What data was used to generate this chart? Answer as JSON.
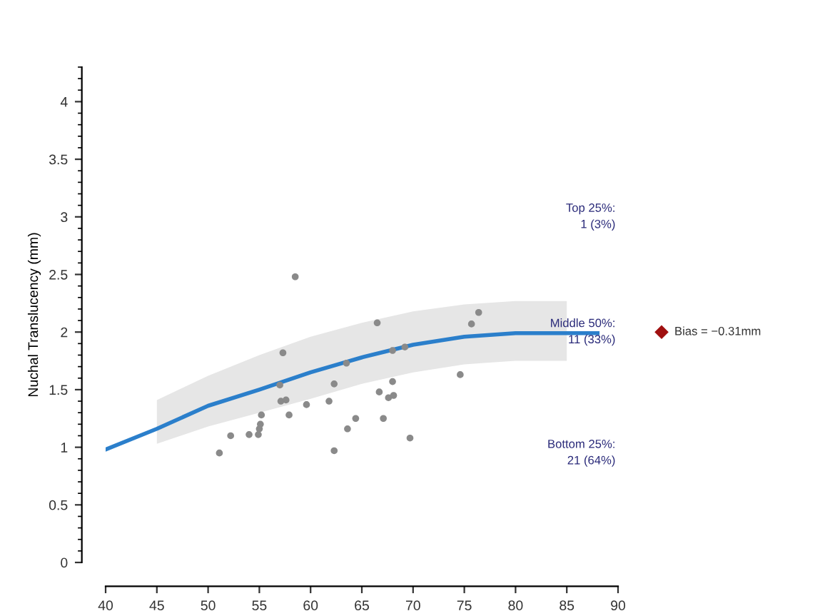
{
  "chart_data": {
    "type": "scatter",
    "ylabel": "Nuchal Translucency (mm)",
    "xlim": [
      40,
      90
    ],
    "xticks": [
      40,
      45,
      50,
      55,
      60,
      65,
      70,
      75,
      80,
      85,
      90
    ],
    "ylim": [
      0,
      4.3
    ],
    "yticks": [
      0,
      0.5,
      1,
      1.5,
      2,
      2.5,
      3,
      3.5,
      4
    ],
    "grid": false,
    "series": [
      {
        "type": "line",
        "color": "#2b7fcb",
        "x": [
          40,
          45,
          50,
          55,
          60,
          65,
          70,
          75,
          80,
          85,
          88
        ],
        "values": [
          0.98,
          1.16,
          1.36,
          1.5,
          1.65,
          1.78,
          1.89,
          1.96,
          1.99,
          1.99,
          1.99
        ],
        "lower": [
          null,
          1.03,
          1.18,
          1.3,
          1.42,
          1.55,
          1.65,
          1.72,
          1.75,
          1.75,
          null
        ],
        "upper": [
          null,
          1.41,
          1.62,
          1.8,
          1.96,
          2.08,
          2.18,
          2.24,
          2.27,
          2.27,
          null
        ]
      },
      {
        "color": "#8a8a8a",
        "marker": "circle",
        "x": [
          58.5,
          57.3,
          57.0,
          57.1,
          57.6,
          55.2,
          55.1,
          55.0,
          54.9,
          54.0,
          52.2,
          51.1,
          57.9,
          59.6,
          61.8,
          62.3,
          62.3,
          63.6,
          63.5,
          64.4,
          66.5,
          66.7,
          67.1,
          67.6,
          68.0,
          68.1,
          68.0,
          69.2,
          69.7,
          74.6,
          75.7,
          76.4
        ],
        "values": [
          2.48,
          1.82,
          1.54,
          1.4,
          1.41,
          1.28,
          1.2,
          1.16,
          1.11,
          1.11,
          1.1,
          0.95,
          1.28,
          1.37,
          1.4,
          1.55,
          0.97,
          1.16,
          1.73,
          1.25,
          2.08,
          1.48,
          1.25,
          1.43,
          1.57,
          1.45,
          1.84,
          1.87,
          1.08,
          1.63,
          2.07,
          2.17
        ]
      }
    ],
    "annotations": [
      "Top 25%:\n1 (3%)",
      "Middle 50%:\n11 (33%)",
      "Bottom 25%:\n21 (64%)",
      "Bias = −0.31mm"
    ]
  }
}
